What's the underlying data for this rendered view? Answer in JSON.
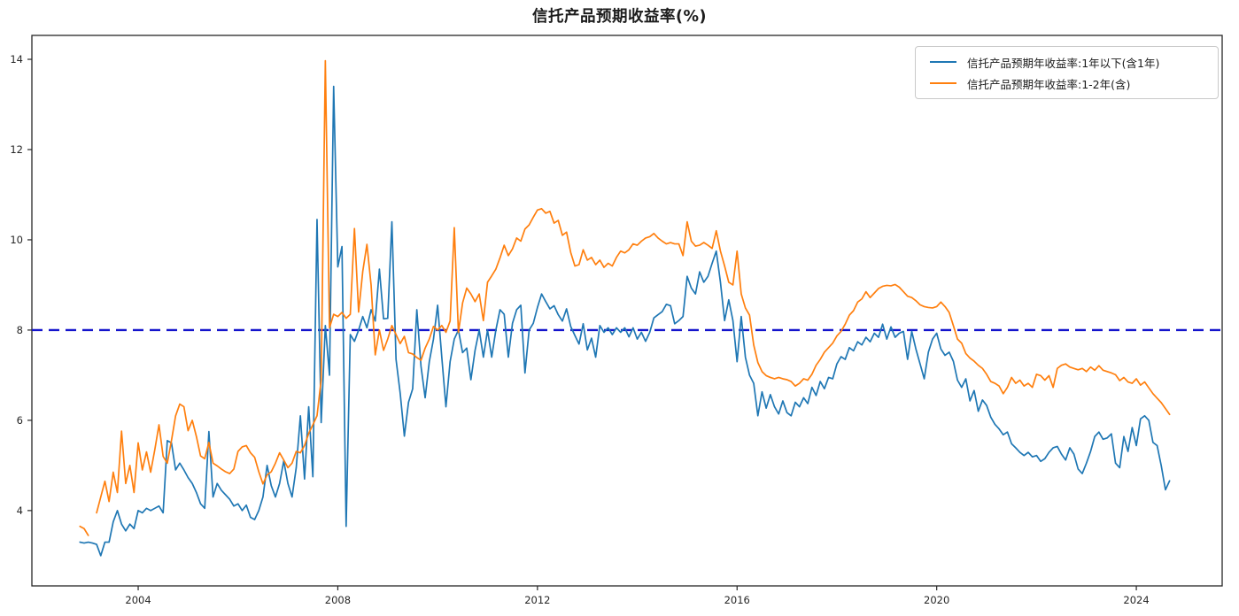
{
  "title": "信托产品预期收益率(%)",
  "legend": {
    "items": [
      {
        "label": "信托产品预期年收益率:1年以下(含1年)",
        "color": "#1f77b4"
      },
      {
        "label": "信托产品预期年收益率:1-2年(含)",
        "color": "#ff7f0e"
      }
    ]
  },
  "colors": {
    "series_under1y": "#1f77b4",
    "series_1to2y": "#ff7f0e",
    "reference_line": "#1414cc",
    "spine": "#262626",
    "tick_text": "#262626",
    "background": "#ffffff"
  },
  "chart_data": {
    "type": "line",
    "title": "信托产品预期收益率(%)",
    "xlabel": "",
    "ylabel": "",
    "x_start_year": 2002.8333,
    "x_freq": "monthly",
    "xlim": [
      2001.87,
      2025.72
    ],
    "ylim": [
      2.33,
      14.53
    ],
    "x_ticks": [
      2004,
      2008,
      2012,
      2016,
      2020,
      2024
    ],
    "y_ticks": [
      4,
      6,
      8,
      10,
      12,
      14
    ],
    "grid": false,
    "legend_position": "upper right",
    "reference_line": {
      "value": 8,
      "style": "dashed",
      "color": "#1414cc"
    },
    "series": [
      {
        "name": "信托产品预期年收益率:1年以下(含1年)",
        "color": "#1f77b4",
        "values": [
          3.3,
          3.28,
          3.3,
          3.28,
          3.25,
          3.0,
          3.3,
          3.3,
          3.75,
          4.0,
          3.7,
          3.55,
          3.7,
          3.6,
          4.0,
          3.95,
          4.05,
          4.0,
          4.05,
          4.1,
          3.95,
          5.55,
          5.5,
          4.9,
          5.05,
          4.9,
          4.73,
          4.6,
          4.4,
          4.15,
          4.05,
          5.75,
          4.3,
          4.6,
          4.45,
          4.35,
          4.25,
          4.1,
          4.15,
          4.0,
          4.12,
          3.85,
          3.8,
          4.0,
          4.3,
          5.0,
          4.55,
          4.3,
          4.6,
          5.1,
          4.6,
          4.3,
          4.95,
          6.1,
          4.7,
          6.3,
          4.75,
          10.45,
          5.95,
          8.1,
          7.0,
          13.4,
          9.4,
          9.85,
          3.65,
          7.9,
          7.75,
          8.0,
          8.3,
          8.05,
          8.45,
          8.2,
          9.35,
          8.25,
          8.26,
          10.4,
          7.35,
          6.6,
          5.65,
          6.4,
          6.7,
          8.45,
          7.2,
          6.5,
          7.3,
          7.8,
          8.55,
          7.4,
          6.3,
          7.3,
          7.8,
          8.0,
          7.5,
          7.6,
          6.9,
          7.55,
          8.0,
          7.4,
          8.0,
          7.4,
          8.0,
          8.45,
          8.35,
          7.4,
          8.15,
          8.45,
          8.55,
          7.05,
          8.0,
          8.15,
          8.5,
          8.8,
          8.63,
          8.47,
          8.54,
          8.34,
          8.2,
          8.47,
          8.08,
          7.88,
          7.69,
          8.14,
          7.56,
          7.82,
          7.4,
          8.1,
          7.95,
          8.05,
          7.9,
          8.05,
          7.95,
          8.05,
          7.85,
          8.05,
          7.8,
          7.95,
          7.75,
          7.95,
          8.27,
          8.34,
          8.41,
          8.57,
          8.54,
          8.14,
          8.21,
          8.3,
          9.19,
          8.93,
          8.8,
          9.29,
          9.06,
          9.19,
          9.48,
          9.75,
          9.06,
          8.21,
          8.67,
          8.21,
          7.3,
          8.3,
          7.4,
          7.0,
          6.82,
          6.1,
          6.63,
          6.27,
          6.57,
          6.3,
          6.14,
          6.43,
          6.17,
          6.1,
          6.4,
          6.3,
          6.5,
          6.37,
          6.73,
          6.55,
          6.86,
          6.7,
          6.95,
          6.92,
          7.25,
          7.41,
          7.35,
          7.61,
          7.54,
          7.74,
          7.67,
          7.84,
          7.74,
          7.93,
          7.84,
          8.13,
          7.8,
          8.07,
          7.84,
          7.93,
          7.97,
          7.35,
          7.97,
          7.58,
          7.25,
          6.92,
          7.51,
          7.8,
          7.93,
          7.58,
          7.44,
          7.51,
          7.31,
          6.89,
          6.73,
          6.92,
          6.43,
          6.66,
          6.2,
          6.45,
          6.33,
          6.07,
          5.91,
          5.81,
          5.68,
          5.74,
          5.48,
          5.39,
          5.29,
          5.22,
          5.29,
          5.19,
          5.22,
          5.09,
          5.15,
          5.29,
          5.39,
          5.42,
          5.25,
          5.12,
          5.39,
          5.25,
          4.92,
          4.82,
          5.05,
          5.31,
          5.64,
          5.74,
          5.58,
          5.61,
          5.7,
          5.05,
          4.95,
          5.64,
          5.31,
          5.84,
          5.44,
          6.03,
          6.1,
          6.0,
          5.51,
          5.44,
          4.99,
          4.46,
          4.66
        ]
      },
      {
        "name": "信托产品预期年收益率:1-2年(含)",
        "color": "#ff7f0e",
        "values": [
          3.65,
          3.6,
          3.45,
          null,
          3.95,
          4.3,
          4.65,
          4.2,
          4.85,
          4.4,
          5.76,
          4.6,
          5.0,
          4.4,
          5.5,
          4.9,
          5.3,
          4.85,
          5.35,
          5.9,
          5.2,
          5.05,
          5.55,
          6.1,
          6.36,
          6.3,
          5.77,
          6.0,
          5.64,
          5.21,
          5.15,
          5.51,
          5.05,
          4.99,
          4.92,
          4.86,
          4.82,
          4.92,
          5.31,
          5.41,
          5.44,
          5.28,
          5.18,
          4.86,
          4.59,
          4.79,
          4.86,
          5.05,
          5.28,
          5.12,
          4.95,
          5.05,
          5.31,
          5.28,
          5.44,
          5.71,
          5.9,
          6.1,
          6.9,
          13.97,
          8.05,
          8.35,
          8.3,
          8.39,
          8.26,
          8.35,
          10.25,
          8.4,
          9.3,
          9.9,
          9.0,
          7.45,
          8.0,
          7.55,
          7.8,
          8.1,
          7.9,
          7.7,
          7.86,
          7.5,
          7.47,
          7.39,
          7.33,
          7.6,
          7.8,
          8.08,
          8.0,
          8.1,
          7.95,
          8.2,
          10.27,
          7.95,
          8.6,
          8.93,
          8.8,
          8.63,
          8.8,
          8.21,
          9.06,
          9.2,
          9.35,
          9.6,
          9.88,
          9.65,
          9.8,
          10.04,
          9.97,
          10.24,
          10.33,
          10.5,
          10.66,
          10.69,
          10.59,
          10.63,
          10.37,
          10.43,
          10.1,
          10.17,
          9.72,
          9.42,
          9.45,
          9.78,
          9.55,
          9.61,
          9.45,
          9.55,
          9.39,
          9.48,
          9.42,
          9.61,
          9.75,
          9.71,
          9.78,
          9.91,
          9.88,
          9.97,
          10.04,
          10.07,
          10.14,
          10.04,
          9.97,
          9.91,
          9.94,
          9.91,
          9.91,
          9.65,
          10.4,
          9.97,
          9.86,
          9.88,
          9.94,
          9.88,
          9.81,
          10.2,
          9.75,
          9.42,
          9.06,
          9.0,
          9.75,
          8.8,
          8.49,
          8.33,
          7.67,
          7.28,
          7.08,
          6.99,
          6.95,
          6.92,
          6.95,
          6.92,
          6.9,
          6.86,
          6.76,
          6.82,
          6.92,
          6.89,
          7.02,
          7.22,
          7.35,
          7.51,
          7.61,
          7.71,
          7.87,
          7.97,
          8.13,
          8.33,
          8.43,
          8.62,
          8.69,
          8.85,
          8.72,
          8.82,
          8.92,
          8.97,
          8.99,
          8.98,
          9.01,
          8.95,
          8.85,
          8.75,
          8.72,
          8.65,
          8.56,
          8.52,
          8.5,
          8.49,
          8.52,
          8.62,
          8.52,
          8.39,
          8.1,
          7.8,
          7.71,
          7.48,
          7.38,
          7.31,
          7.22,
          7.15,
          7.02,
          6.86,
          6.82,
          6.76,
          6.59,
          6.73,
          6.95,
          6.82,
          6.89,
          6.76,
          6.82,
          6.73,
          7.02,
          6.99,
          6.89,
          6.99,
          6.73,
          7.15,
          7.22,
          7.25,
          7.18,
          7.15,
          7.12,
          7.15,
          7.08,
          7.18,
          7.11,
          7.21,
          7.11,
          7.08,
          7.05,
          7.01,
          6.88,
          6.95,
          6.85,
          6.82,
          6.92,
          6.78,
          6.85,
          6.72,
          6.59,
          6.49,
          6.39,
          6.26,
          6.13
        ]
      }
    ]
  }
}
